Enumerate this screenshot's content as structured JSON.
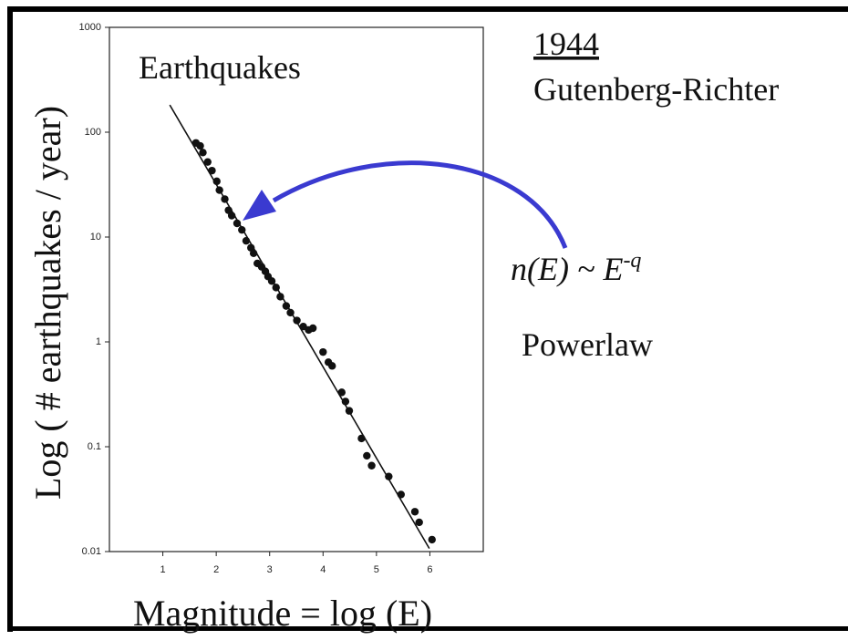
{
  "chart_data": {
    "type": "scatter",
    "title": "Earthquakes",
    "x_label": "Magnitude = log (E)",
    "y_label": "Log ( # earthquakes / year)",
    "annotations": {
      "year": "1944",
      "authors": "Gutenberg-Richter",
      "formula": "n(E) ~ E",
      "exponent": "-q",
      "note": "Powerlaw"
    },
    "y_scale": "log",
    "color": "#111111",
    "xlim": [
      0,
      7
    ],
    "ylim": [
      0.01,
      1000
    ],
    "xticks": [
      1,
      2,
      3,
      4,
      5,
      6
    ],
    "yticks": [
      1000,
      100,
      10,
      1,
      0.1,
      0.01
    ],
    "series": [
      {
        "x": [
          1.62,
          1.7,
          1.75,
          1.84,
          1.92,
          2.01,
          2.06,
          2.16,
          2.23,
          2.29,
          2.39,
          2.48,
          2.56,
          2.65,
          2.7,
          2.77,
          2.85,
          2.92,
          2.97,
          3.04,
          3.12,
          3.2,
          3.31,
          3.39,
          3.51,
          3.63,
          3.73,
          3.81,
          4.0,
          4.1,
          4.17,
          4.35,
          4.42,
          4.49,
          4.72,
          4.82,
          4.91,
          5.23,
          5.46,
          5.72,
          5.8,
          6.04
        ],
        "values": [
          79,
          74,
          64,
          52,
          43,
          34,
          28,
          23,
          18,
          16,
          13.5,
          11.7,
          9.2,
          7.9,
          7.0,
          5.6,
          5.2,
          4.7,
          4.2,
          3.8,
          3.3,
          2.7,
          2.2,
          1.9,
          1.6,
          1.4,
          1.3,
          1.35,
          0.8,
          0.64,
          0.59,
          0.33,
          0.27,
          0.22,
          0.12,
          0.082,
          0.066,
          0.052,
          0.035,
          0.024,
          0.019,
          0.013
        ]
      }
    ],
    "fit": {
      "x": [
        1.13,
        5.99
      ],
      "values": [
        182,
        0.0107
      ]
    }
  }
}
